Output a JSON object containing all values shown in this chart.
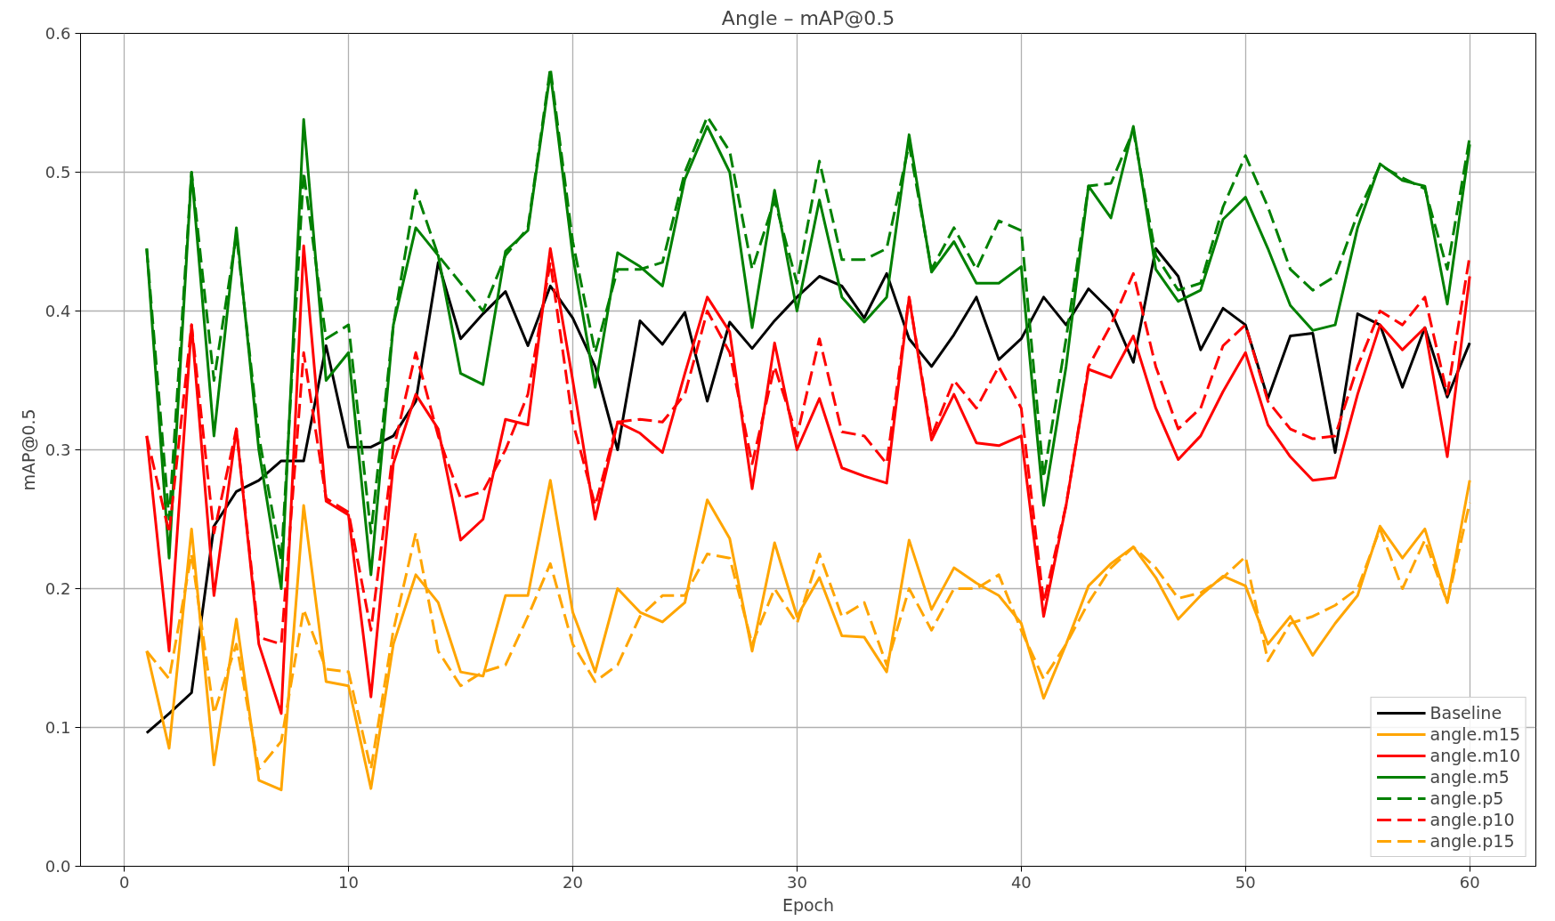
{
  "chart_data": {
    "type": "line",
    "title": "Angle – mAP@0.5",
    "xlabel": "Epoch",
    "ylabel": "mAP@0.5",
    "x": [
      1,
      2,
      3,
      4,
      5,
      6,
      7,
      8,
      9,
      10,
      11,
      12,
      13,
      14,
      15,
      16,
      17,
      18,
      19,
      20,
      21,
      22,
      23,
      24,
      25,
      26,
      27,
      28,
      29,
      30,
      31,
      32,
      33,
      34,
      35,
      36,
      37,
      38,
      39,
      40,
      41,
      42,
      43,
      44,
      45,
      46,
      47,
      48,
      49,
      50,
      51,
      52,
      53,
      54,
      55,
      56,
      57,
      58,
      59,
      60
    ],
    "xlim": [
      -1.95,
      62.95
    ],
    "xticks": [
      0,
      10,
      20,
      30,
      40,
      50,
      60
    ],
    "ylim": [
      0,
      0.6
    ],
    "yticks": [
      {
        "value": 0,
        "label": "0.0"
      },
      0.1,
      0.2,
      0.3,
      0.4,
      0.5,
      0.6
    ],
    "grid": true,
    "legend": "bottom right",
    "marker": "none",
    "series": [
      {
        "name": "Baseline",
        "color": "#000000",
        "line_style": "solid",
        "values": [
          0.096,
          0.11,
          0.125,
          0.245,
          0.27,
          0.278,
          0.292,
          0.292,
          0.375,
          0.302,
          0.302,
          0.31,
          0.335,
          0.435,
          0.38,
          0.398,
          0.414,
          0.375,
          0.418,
          0.395,
          0.36,
          0.3,
          0.393,
          0.376,
          0.399,
          0.335,
          0.392,
          0.373,
          0.393,
          0.41,
          0.425,
          0.418,
          0.395,
          0.427,
          0.38,
          0.36,
          0.383,
          0.41,
          0.365,
          0.38,
          0.41,
          0.39,
          0.416,
          0.4,
          0.363,
          0.445,
          0.425,
          0.372,
          0.402,
          0.39,
          0.337,
          0.382,
          0.384,
          0.298,
          0.398,
          0.39,
          0.345,
          0.388,
          0.338,
          0.377
        ]
      },
      {
        "name": "angle.m15",
        "color": "#ffa500",
        "line_style": "solid",
        "values": [
          0.155,
          0.085,
          0.243,
          0.073,
          0.178,
          0.062,
          0.055,
          0.26,
          0.133,
          0.13,
          0.056,
          0.16,
          0.21,
          0.19,
          0.14,
          0.137,
          0.195,
          0.195,
          0.278,
          0.183,
          0.14,
          0.2,
          0.183,
          0.176,
          0.19,
          0.264,
          0.236,
          0.155,
          0.233,
          0.18,
          0.208,
          0.166,
          0.165,
          0.14,
          0.235,
          0.185,
          0.215,
          0.204,
          0.195,
          0.175,
          0.121,
          0.16,
          0.202,
          0.218,
          0.23,
          0.208,
          0.178,
          0.195,
          0.209,
          0.202,
          0.16,
          0.18,
          0.152,
          0.175,
          0.195,
          0.245,
          0.222,
          0.243,
          0.19,
          0.278
        ]
      },
      {
        "name": "angle.m10",
        "color": "#ff0000",
        "line_style": "solid",
        "values": [
          0.31,
          0.155,
          0.39,
          0.195,
          0.315,
          0.16,
          0.11,
          0.447,
          0.263,
          0.253,
          0.122,
          0.29,
          0.34,
          0.315,
          0.235,
          0.25,
          0.322,
          0.318,
          0.445,
          0.35,
          0.25,
          0.32,
          0.312,
          0.298,
          0.355,
          0.41,
          0.385,
          0.272,
          0.377,
          0.3,
          0.337,
          0.287,
          0.281,
          0.276,
          0.41,
          0.307,
          0.34,
          0.305,
          0.303,
          0.31,
          0.18,
          0.26,
          0.358,
          0.352,
          0.382,
          0.33,
          0.293,
          0.31,
          0.342,
          0.37,
          0.318,
          0.295,
          0.278,
          0.28,
          0.34,
          0.39,
          0.372,
          0.388,
          0.295,
          0.425
        ]
      },
      {
        "name": "angle.m5",
        "color": "#008000",
        "line_style": "solid",
        "values": [
          0.445,
          0.222,
          0.5,
          0.31,
          0.46,
          0.3,
          0.2,
          0.538,
          0.35,
          0.37,
          0.21,
          0.39,
          0.46,
          0.44,
          0.355,
          0.347,
          0.443,
          0.458,
          0.572,
          0.44,
          0.345,
          0.442,
          0.432,
          0.418,
          0.495,
          0.533,
          0.5,
          0.388,
          0.487,
          0.4,
          0.48,
          0.41,
          0.392,
          0.41,
          0.527,
          0.428,
          0.45,
          0.42,
          0.42,
          0.432,
          0.26,
          0.36,
          0.49,
          0.467,
          0.533,
          0.43,
          0.407,
          0.415,
          0.466,
          0.482,
          0.445,
          0.404,
          0.386,
          0.39,
          0.46,
          0.506,
          0.494,
          0.49,
          0.405,
          0.52
        ]
      },
      {
        "name": "angle.p5",
        "color": "#008000",
        "line_style": "dashed",
        "values": [
          0.445,
          0.25,
          0.5,
          0.35,
          0.455,
          0.31,
          0.22,
          0.5,
          0.38,
          0.39,
          0.24,
          0.39,
          0.487,
          0.44,
          0.42,
          0.4,
          0.44,
          0.46,
          0.575,
          0.45,
          0.37,
          0.43,
          0.43,
          0.435,
          0.5,
          0.54,
          0.515,
          0.43,
          0.48,
          0.42,
          0.508,
          0.437,
          0.437,
          0.445,
          0.52,
          0.43,
          0.46,
          0.43,
          0.465,
          0.458,
          0.28,
          0.38,
          0.49,
          0.492,
          0.53,
          0.44,
          0.415,
          0.42,
          0.475,
          0.512,
          0.475,
          0.43,
          0.415,
          0.425,
          0.47,
          0.505,
          0.496,
          0.488,
          0.43,
          0.525
        ]
      },
      {
        "name": "angle.p10",
        "color": "#ff0000",
        "line_style": "dashed",
        "values": [
          0.31,
          0.24,
          0.39,
          0.24,
          0.315,
          0.165,
          0.16,
          0.37,
          0.265,
          0.255,
          0.17,
          0.3,
          0.37,
          0.31,
          0.265,
          0.27,
          0.3,
          0.34,
          0.435,
          0.32,
          0.26,
          0.32,
          0.322,
          0.32,
          0.34,
          0.4,
          0.37,
          0.29,
          0.36,
          0.31,
          0.38,
          0.313,
          0.31,
          0.29,
          0.41,
          0.31,
          0.35,
          0.33,
          0.36,
          0.33,
          0.19,
          0.26,
          0.36,
          0.39,
          0.427,
          0.36,
          0.315,
          0.33,
          0.375,
          0.39,
          0.335,
          0.315,
          0.308,
          0.31,
          0.36,
          0.4,
          0.39,
          0.41,
          0.34,
          0.44
        ]
      },
      {
        "name": "angle.p15",
        "color": "#ffa500",
        "line_style": "dashed",
        "values": [
          0.155,
          0.135,
          0.225,
          0.11,
          0.16,
          0.07,
          0.09,
          0.185,
          0.142,
          0.14,
          0.07,
          0.17,
          0.24,
          0.155,
          0.13,
          0.14,
          0.145,
          0.18,
          0.218,
          0.16,
          0.133,
          0.145,
          0.18,
          0.195,
          0.195,
          0.225,
          0.222,
          0.16,
          0.2,
          0.175,
          0.225,
          0.18,
          0.19,
          0.145,
          0.2,
          0.17,
          0.2,
          0.2,
          0.21,
          0.17,
          0.135,
          0.16,
          0.19,
          0.215,
          0.23,
          0.215,
          0.193,
          0.197,
          0.208,
          0.223,
          0.148,
          0.175,
          0.18,
          0.188,
          0.2,
          0.243,
          0.2,
          0.235,
          0.19,
          0.262
        ]
      }
    ]
  }
}
